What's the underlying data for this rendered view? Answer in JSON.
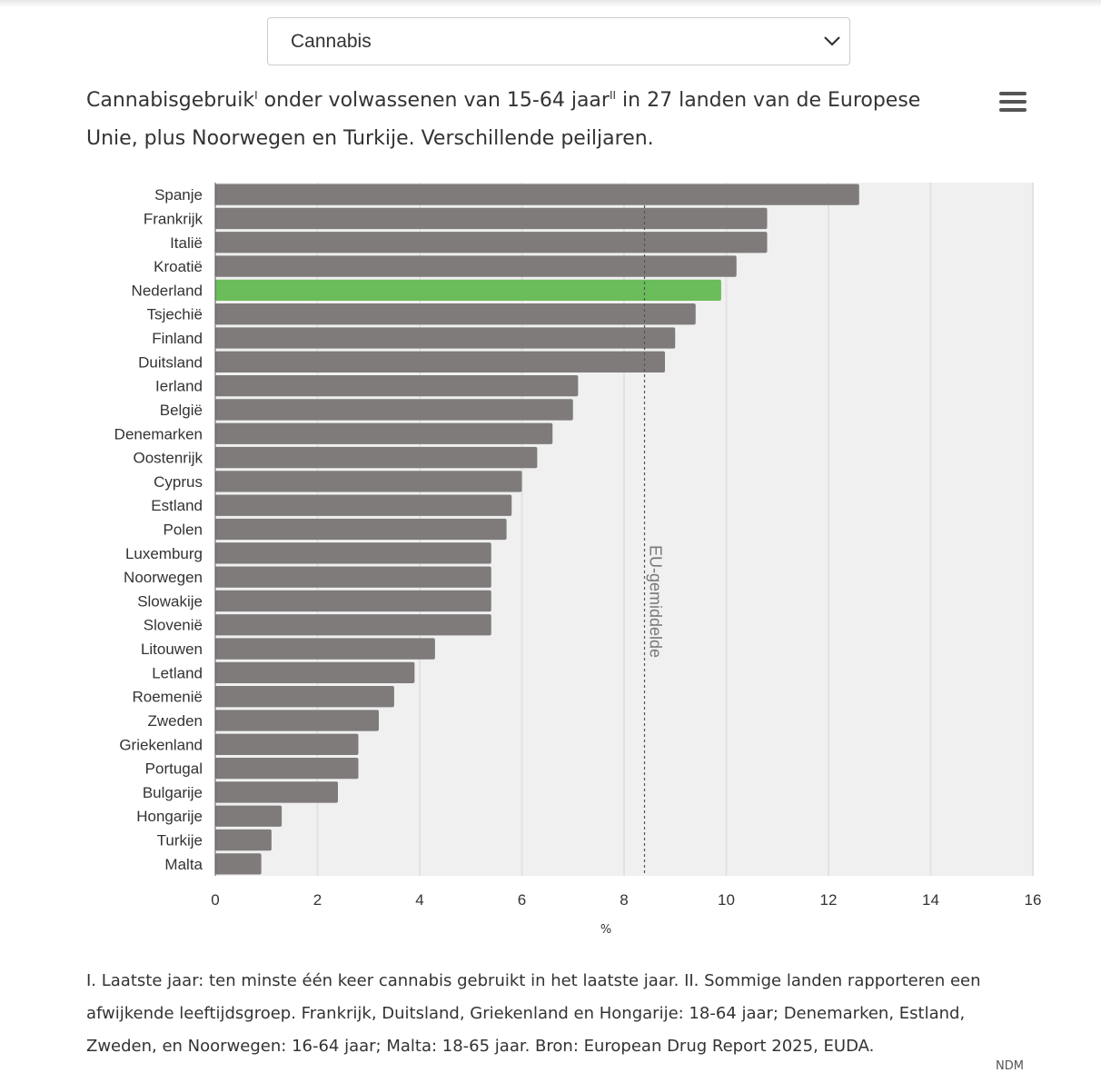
{
  "dropdown": {
    "selected": "Cannabis"
  },
  "title": {
    "part1": "Cannabisgebruik",
    "sup1": "I",
    "part2": " onder volwassenen van 15-64 jaar",
    "sup2": "II",
    "part3": " in 27 landen van de Europese Unie, plus Noorwegen en Turkije. Verschillende peiljaren."
  },
  "menu_icon": "hamburger-menu-icon",
  "chart_data": {
    "type": "bar",
    "orientation": "horizontal",
    "categories": [
      "Spanje",
      "Frankrijk",
      "Italië",
      "Kroatië",
      "Nederland",
      "Tsjechië",
      "Finland",
      "Duitsland",
      "Ierland",
      "België",
      "Denemarken",
      "Oostenrijk",
      "Cyprus",
      "Estland",
      "Polen",
      "Luxemburg",
      "Noorwegen",
      "Slowakije",
      "Slovenië",
      "Litouwen",
      "Letland",
      "Roemenië",
      "Zweden",
      "Griekenland",
      "Portugal",
      "Bulgarije",
      "Hongarije",
      "Turkije",
      "Malta"
    ],
    "values": [
      12.6,
      10.8,
      10.8,
      10.2,
      9.9,
      9.4,
      9.0,
      8.8,
      7.1,
      7.0,
      6.6,
      6.3,
      6.0,
      5.8,
      5.7,
      5.4,
      5.4,
      5.4,
      5.4,
      4.3,
      3.9,
      3.5,
      3.2,
      2.8,
      2.8,
      2.4,
      1.3,
      1.1,
      0.9
    ],
    "highlight": "Nederland",
    "colors": {
      "bar": "#7f7b7b",
      "highlight": "#6abd5a",
      "plot_bg": "#f0f0f0"
    },
    "xlabel": "%",
    "xlim": [
      0,
      16
    ],
    "xticks": [
      0,
      2,
      4,
      6,
      8,
      10,
      12,
      14,
      16
    ],
    "grid": true,
    "reference_line": {
      "label": "EU-gemiddelde",
      "value": 8.4
    }
  },
  "footnote": "I. Laatste jaar: ten minste één keer cannabis gebruikt in het laatste jaar. II. Sommige landen rapporteren een afwijkende leeftijdsgroep. Frankrijk, Duitsland, Griekenland en Hongarije: 18-64 jaar; Denemarken, Estland, Zweden, en Noorwegen: 16-64 jaar; Malta: 18-65 jaar. Bron: European Drug Report 2025, EUDA.",
  "credit": "NDM"
}
